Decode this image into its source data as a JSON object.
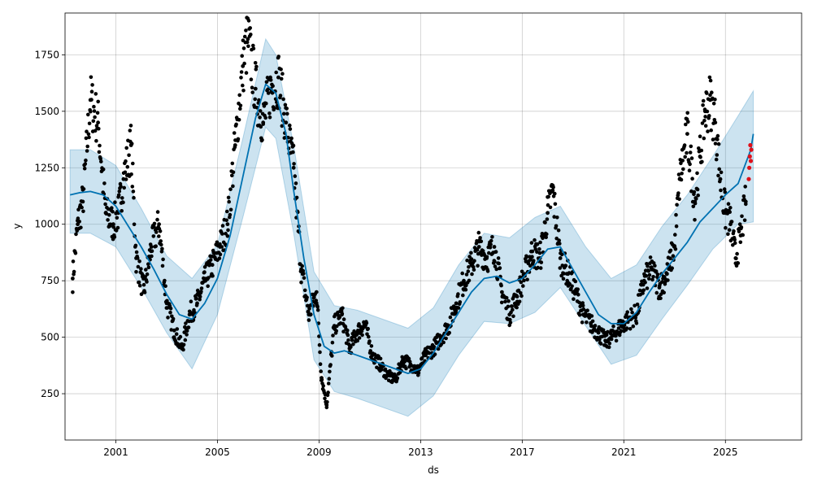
{
  "chart_data": {
    "type": "scatter",
    "title": "",
    "xlabel": "ds",
    "ylabel": "y",
    "xlim": [
      1999.0,
      2028.0
    ],
    "ylim": [
      45,
      1935
    ],
    "grid": true,
    "x_ticks": [
      {
        "value": 2001,
        "label": "2001"
      },
      {
        "value": 2005,
        "label": "2005"
      },
      {
        "value": 2009,
        "label": "2009"
      },
      {
        "value": 2013,
        "label": "2013"
      },
      {
        "value": 2017,
        "label": "2017"
      },
      {
        "value": 2021,
        "label": "2021"
      },
      {
        "value": 2025,
        "label": "2025"
      }
    ],
    "y_ticks": [
      {
        "value": 250,
        "label": "250"
      },
      {
        "value": 500,
        "label": "500"
      },
      {
        "value": 750,
        "label": "750"
      },
      {
        "value": 1000,
        "label": "1000"
      },
      {
        "value": 1250,
        "label": "1250"
      },
      {
        "value": 1500,
        "label": "1500"
      },
      {
        "value": 1750,
        "label": "1750"
      }
    ],
    "colors": {
      "observed": "#000000",
      "forecast_line": "#0072B2",
      "uncertainty_band": "#0072B2",
      "recent": "#e0101a"
    },
    "series": [
      {
        "kind": "forecast",
        "x": [
          1999.2,
          1999.6,
          2000.0,
          2000.5,
          2001.0,
          2001.5,
          2002.0,
          2002.5,
          2003.0,
          2003.5,
          2004.0,
          2004.5,
          2005.0,
          2005.5,
          2006.0,
          2006.5,
          2006.9,
          2007.3,
          2007.7,
          2008.0,
          2008.4,
          2008.8,
          2009.2,
          2009.6,
          2010.0,
          2010.5,
          2011.0,
          2011.5,
          2012.0,
          2012.5,
          2013.0,
          2013.5,
          2014.0,
          2014.5,
          2015.0,
          2015.5,
          2016.0,
          2016.5,
          2017.0,
          2017.5,
          2018.0,
          2018.5,
          2019.0,
          2019.5,
          2020.0,
          2020.5,
          2021.0,
          2021.5,
          2022.0,
          2022.5,
          2023.0,
          2023.5,
          2024.0,
          2024.5,
          2025.0,
          2025.5,
          2026.0,
          2026.1
        ],
        "y": [
          1130,
          1140,
          1145,
          1130,
          1080,
          990,
          900,
          800,
          690,
          600,
          580,
          650,
          760,
          950,
          1210,
          1470,
          1620,
          1580,
          1400,
          1150,
          850,
          600,
          460,
          430,
          440,
          420,
          400,
          380,
          360,
          340,
          360,
          430,
          520,
          610,
          700,
          760,
          770,
          740,
          760,
          820,
          890,
          900,
          800,
          700,
          600,
          560,
          560,
          610,
          700,
          780,
          850,
          920,
          1010,
          1070,
          1130,
          1180,
          1330,
          1400
        ]
      },
      {
        "kind": "uncertainty_upper",
        "x": [
          1999.2,
          2000.0,
          2001.0,
          2002.0,
          2003.0,
          2004.0,
          2005.0,
          2006.0,
          2006.9,
          2007.3,
          2008.0,
          2008.8,
          2009.6,
          2010.5,
          2011.5,
          2012.5,
          2013.5,
          2014.5,
          2015.5,
          2016.5,
          2017.5,
          2018.5,
          2019.5,
          2020.5,
          2021.5,
          2022.5,
          2023.5,
          2024.5,
          2025.5,
          2026.1
        ],
        "y": [
          1330,
          1330,
          1260,
          1070,
          860,
          760,
          910,
          1380,
          1820,
          1750,
          1350,
          790,
          640,
          620,
          580,
          540,
          630,
          820,
          960,
          940,
          1030,
          1080,
          900,
          760,
          820,
          990,
          1130,
          1300,
          1480,
          1590
        ]
      },
      {
        "kind": "uncertainty_lower",
        "x": [
          1999.2,
          2000.0,
          2001.0,
          2002.0,
          2003.0,
          2004.0,
          2005.0,
          2006.0,
          2006.9,
          2007.3,
          2008.0,
          2008.8,
          2009.6,
          2010.5,
          2011.5,
          2012.5,
          2013.5,
          2014.5,
          2015.5,
          2016.5,
          2017.5,
          2018.5,
          2019.5,
          2020.5,
          2021.5,
          2022.5,
          2023.5,
          2024.5,
          2025.5,
          2026.1
        ],
        "y": [
          960,
          960,
          900,
          720,
          520,
          360,
          600,
          1030,
          1430,
          1380,
          960,
          400,
          260,
          230,
          190,
          150,
          240,
          420,
          570,
          560,
          610,
          720,
          550,
          380,
          420,
          580,
          730,
          890,
          1000,
          1010
        ]
      },
      {
        "kind": "observed",
        "x": [
          1999.3,
          1999.5,
          1999.7,
          2000.0,
          2000.3,
          2000.6,
          2000.9,
          2001.1,
          2001.3,
          2001.6,
          2001.8,
          2002.1,
          2002.4,
          2002.7,
          2003.0,
          2003.3,
          2003.6,
          2003.9,
          2004.2,
          2004.5,
          2004.8,
          2005.1,
          2005.4,
          2005.7,
          2006.0,
          2006.2,
          2006.5,
          2006.8,
          2007.1,
          2007.4,
          2007.7,
          2008.0,
          2008.3,
          2008.6,
          2008.9,
          2009.1,
          2009.3,
          2009.6,
          2009.9,
          2010.2,
          2010.5,
          2010.8,
          2011.1,
          2011.4,
          2011.7,
          2012.0,
          2012.3,
          2012.6,
          2012.9,
          2013.2,
          2013.5,
          2013.8,
          2014.1,
          2014.4,
          2014.7,
          2015.0,
          2015.3,
          2015.6,
          2015.9,
          2016.2,
          2016.5,
          2016.8,
          2017.1,
          2017.4,
          2017.7,
          2018.0,
          2018.2,
          2018.5,
          2018.8,
          2019.1,
          2019.4,
          2019.7,
          2020.0,
          2020.3,
          2020.6,
          2020.9,
          2021.2,
          2021.5,
          2021.8,
          2022.1,
          2022.4,
          2022.7,
          2023.0,
          2023.2,
          2023.5,
          2023.8,
          2024.0,
          2024.2,
          2024.4,
          2024.6,
          2024.8,
          2025.0,
          2025.2,
          2025.4,
          2025.6,
          2025.8
        ],
        "y": [
          760,
          1000,
          1100,
          1550,
          1450,
          1050,
          1000,
          1050,
          1200,
          1350,
          850,
          700,
          900,
          1000,
          650,
          530,
          450,
          600,
          650,
          750,
          820,
          900,
          1000,
          1350,
          1700,
          1820,
          1600,
          1450,
          1600,
          1650,
          1450,
          1250,
          800,
          600,
          700,
          320,
          200,
          550,
          600,
          450,
          520,
          560,
          420,
          380,
          330,
          310,
          400,
          380,
          350,
          420,
          450,
          500,
          550,
          650,
          750,
          820,
          900,
          850,
          900,
          700,
          600,
          680,
          780,
          880,
          850,
          1050,
          1150,
          850,
          780,
          700,
          600,
          560,
          520,
          480,
          510,
          550,
          580,
          600,
          750,
          800,
          720,
          780,
          900,
          1200,
          1400,
          1100,
          1300,
          1500,
          1550,
          1450,
          1200,
          1050,
          1000,
          850,
          950,
          1100
        ]
      },
      {
        "kind": "recent",
        "x": [
          2025.92,
          2025.94,
          2025.96,
          2025.98,
          2026.0,
          2026.02
        ],
        "y": [
          1200,
          1250,
          1300,
          1350,
          1280,
          1330
        ]
      }
    ]
  }
}
